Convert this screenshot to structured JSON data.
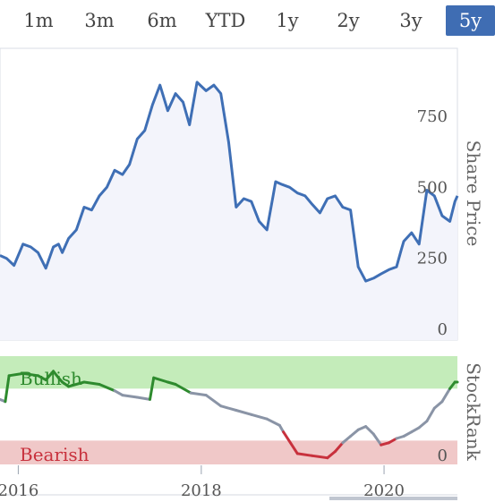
{
  "tabs": [
    {
      "label": "1m",
      "active": false
    },
    {
      "label": "3m",
      "active": false
    },
    {
      "label": "6m",
      "active": false
    },
    {
      "label": "YTD",
      "active": false
    },
    {
      "label": "1y",
      "active": false
    },
    {
      "label": "2y",
      "active": false
    },
    {
      "label": "3y",
      "active": false
    },
    {
      "label": "5y",
      "active": true
    }
  ],
  "colors": {
    "price_line": "#3f6fb5",
    "price_fill": "#f3f4fb",
    "bullish_band": "#c4ecba",
    "bearish_band": "#f0c8c8",
    "rank_bullish": "#2e8b2e",
    "rank_neutral": "#8a94a6",
    "rank_bearish": "#c8313d",
    "active_tab": "#3f6db3"
  },
  "chart_data": [
    {
      "type": "line",
      "ylabel": "Share Price",
      "ylim": [
        0,
        1000
      ],
      "yticks": [
        0,
        250,
        500,
        750
      ],
      "xlim": [
        "2015-10-20",
        "2020-10-20"
      ],
      "series": [
        {
          "x": [
            "2015-10-20",
            "2015-11-15",
            "2015-12-15",
            "2016-01-20",
            "2016-02-20",
            "2016-03-20",
            "2016-04-20",
            "2016-05-20",
            "2016-06-10",
            "2016-06-25",
            "2016-07-20",
            "2016-08-20",
            "2016-09-20",
            "2016-10-20",
            "2016-11-20",
            "2016-12-20",
            "2017-01-20",
            "2017-02-20",
            "2017-03-20",
            "2017-04-20",
            "2017-05-20",
            "2017-06-20",
            "2017-07-20",
            "2017-08-20",
            "2017-09-20",
            "2017-10-20",
            "2017-11-15",
            "2017-12-15",
            "2018-01-20",
            "2018-02-20",
            "2018-03-20",
            "2018-04-20",
            "2018-05-20",
            "2018-06-20",
            "2018-07-20",
            "2018-08-20",
            "2018-09-20",
            "2018-10-15",
            "2018-10-25",
            "2018-11-20",
            "2018-12-20",
            "2019-01-20",
            "2019-02-20",
            "2019-03-20",
            "2019-04-20",
            "2019-05-20",
            "2019-06-20",
            "2019-07-20",
            "2019-08-20",
            "2019-09-20",
            "2019-10-20",
            "2019-11-20",
            "2019-12-20",
            "2020-01-20",
            "2020-02-20",
            "2020-03-10",
            "2020-03-20",
            "2020-04-20",
            "2020-05-20",
            "2020-06-20",
            "2020-07-20",
            "2020-08-20",
            "2020-09-20",
            "2020-10-10",
            "2020-10-20"
          ],
          "values": [
            260,
            250,
            225,
            300,
            290,
            270,
            215,
            290,
            300,
            270,
            320,
            350,
            430,
            420,
            470,
            500,
            560,
            545,
            580,
            670,
            700,
            790,
            860,
            770,
            830,
            800,
            720,
            870,
            840,
            860,
            830,
            660,
            430,
            460,
            450,
            380,
            350,
            470,
            520,
            510,
            500,
            480,
            470,
            440,
            410,
            460,
            470,
            430,
            420,
            220,
            170,
            180,
            195,
            210,
            220,
            280,
            310,
            340,
            300,
            490,
            470,
            400,
            380,
            450,
            470
          ]
        }
      ]
    },
    {
      "type": "line",
      "ylabel": "StockRank",
      "band_labels": {
        "upper": "Bullish",
        "lower": "Bearish"
      },
      "ylim": [
        0,
        100
      ],
      "yticks": [
        0
      ],
      "xlim": [
        "2015-10-20",
        "2020-10-20"
      ],
      "xticks": [
        "2016",
        "2018",
        "2020"
      ],
      "series": [
        {
          "x": [
            "2015-10-20",
            "2015-11-10",
            "2015-11-25",
            "2016-01-20",
            "2016-03-20",
            "2016-04-20",
            "2016-05-20",
            "2016-06-10",
            "2016-06-25",
            "2016-07-20",
            "2016-09-20",
            "2016-11-20",
            "2017-01-20",
            "2017-02-20",
            "2017-04-20",
            "2017-06-10",
            "2017-06-25",
            "2017-08-20",
            "2017-09-20",
            "2017-11-20",
            "2018-01-20",
            "2018-03-20",
            "2018-05-20",
            "2018-07-20",
            "2018-09-20",
            "2018-11-10",
            "2018-11-25",
            "2019-01-20",
            "2019-03-20",
            "2019-05-20",
            "2019-06-20",
            "2019-07-20",
            "2019-08-20",
            "2019-09-20",
            "2019-10-20",
            "2019-11-20",
            "2019-12-20",
            "2020-01-20",
            "2020-02-20",
            "2020-03-20",
            "2020-04-20",
            "2020-05-20",
            "2020-06-20",
            "2020-07-20",
            "2020-08-20",
            "2020-09-20",
            "2020-10-10",
            "2020-10-20"
          ],
          "values": [
            60,
            58,
            82,
            84,
            82,
            78,
            86,
            80,
            76,
            72,
            76,
            74,
            68,
            64,
            62,
            60,
            80,
            76,
            74,
            66,
            64,
            54,
            50,
            46,
            42,
            36,
            30,
            10,
            8,
            6,
            12,
            20,
            26,
            32,
            35,
            28,
            18,
            20,
            24,
            26,
            30,
            34,
            40,
            52,
            58,
            70,
            76,
            76
          ]
        }
      ]
    }
  ]
}
